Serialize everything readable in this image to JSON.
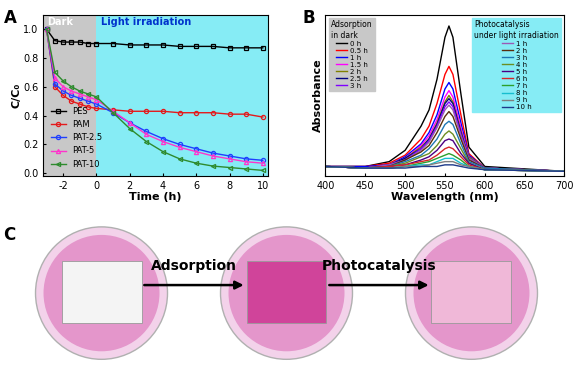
{
  "chart_data": [
    {
      "type": "line",
      "title": "A",
      "x_label": "Time (h)",
      "y_label": "C/C₀",
      "x": [
        -3,
        -2.5,
        -2,
        -1.5,
        -1,
        -0.5,
        0,
        1,
        2,
        3,
        4,
        5,
        6,
        7,
        8,
        9,
        10
      ],
      "xlim": [
        -3.2,
        10.3
      ],
      "xticks": [
        -2,
        0,
        2,
        4,
        6,
        8,
        10
      ],
      "ylim": [
        -0.02,
        1.1
      ],
      "yticks": [
        0.0,
        0.2,
        0.4,
        0.6,
        0.8,
        1.0
      ],
      "legend": "lower left",
      "regions": [
        {
          "text": "Dark",
          "from": -3.2,
          "to": 0,
          "color": "#c8c8c8"
        },
        {
          "text": "Light irradiation",
          "from": 0,
          "to": 10.3,
          "color": "#86ecf5"
        }
      ],
      "series": [
        {
          "name": "PES",
          "color": "#000000",
          "marker": "square",
          "values": [
            1.0,
            0.92,
            0.91,
            0.91,
            0.91,
            0.9,
            0.9,
            0.9,
            0.89,
            0.89,
            0.89,
            0.88,
            0.88,
            0.88,
            0.87,
            0.87,
            0.87
          ]
        },
        {
          "name": "PAM",
          "color": "#e41a1c",
          "marker": "circle",
          "values": [
            1.0,
            0.6,
            0.54,
            0.5,
            0.48,
            0.46,
            0.45,
            0.44,
            0.43,
            0.43,
            0.43,
            0.42,
            0.42,
            0.42,
            0.41,
            0.41,
            0.39
          ]
        },
        {
          "name": "PAT-2.5",
          "color": "#1f3fff",
          "marker": "circle",
          "values": [
            1.0,
            0.62,
            0.57,
            0.54,
            0.52,
            0.5,
            0.48,
            0.42,
            0.35,
            0.29,
            0.24,
            0.2,
            0.17,
            0.14,
            0.12,
            0.1,
            0.09
          ]
        },
        {
          "name": "PAT-5",
          "color": "#ff33cc",
          "marker": "triangle",
          "values": [
            1.0,
            0.66,
            0.6,
            0.57,
            0.55,
            0.53,
            0.51,
            0.43,
            0.35,
            0.27,
            0.22,
            0.18,
            0.15,
            0.12,
            0.1,
            0.08,
            0.07
          ]
        },
        {
          "name": "PAT-10",
          "color": "#2e8b2e",
          "marker": "triangle_left",
          "values": [
            1.0,
            0.7,
            0.64,
            0.6,
            0.57,
            0.55,
            0.53,
            0.42,
            0.31,
            0.22,
            0.15,
            0.1,
            0.07,
            0.05,
            0.04,
            0.03,
            0.02
          ]
        }
      ]
    },
    {
      "type": "line",
      "title": "B",
      "x_label": "Wavelength (nm)",
      "y_label": "Absorbance",
      "x": [
        400,
        450,
        480,
        500,
        520,
        530,
        540,
        550,
        555,
        560,
        570,
        580,
        600,
        700
      ],
      "xlim": [
        400,
        700
      ],
      "xticks": [
        400,
        450,
        500,
        550,
        600,
        650,
        700
      ],
      "ylim": [
        0,
        1.0
      ],
      "yticks": [],
      "tick_labels": "x",
      "groups": [
        {
          "title": "Adsorption\nin dark",
          "color": "#c8c8c8",
          "legend": "upper left",
          "series": [
            {
              "name": "0 h",
              "color": "#000000",
              "values": [
                0.06,
                0.06,
                0.09,
                0.16,
                0.31,
                0.41,
                0.6,
                0.86,
                0.93,
                0.86,
                0.51,
                0.18,
                0.06,
                0.03
              ]
            },
            {
              "name": "0.5 h",
              "color": "#ff0000",
              "values": [
                0.06,
                0.06,
                0.08,
                0.13,
                0.23,
                0.31,
                0.45,
                0.63,
                0.68,
                0.63,
                0.38,
                0.14,
                0.05,
                0.03
              ]
            },
            {
              "name": "1 h",
              "color": "#0000ff",
              "values": [
                0.06,
                0.06,
                0.07,
                0.12,
                0.2,
                0.27,
                0.38,
                0.54,
                0.58,
                0.54,
                0.33,
                0.13,
                0.05,
                0.03
              ]
            },
            {
              "name": "1.5 h",
              "color": "#ff00ff",
              "values": [
                0.06,
                0.05,
                0.07,
                0.11,
                0.19,
                0.25,
                0.35,
                0.49,
                0.53,
                0.49,
                0.3,
                0.12,
                0.05,
                0.03
              ]
            },
            {
              "name": "2 h",
              "color": "#808000",
              "values": [
                0.06,
                0.05,
                0.07,
                0.11,
                0.18,
                0.23,
                0.33,
                0.46,
                0.5,
                0.46,
                0.28,
                0.12,
                0.05,
                0.03
              ]
            },
            {
              "name": "2.5 h",
              "color": "#000080",
              "values": [
                0.06,
                0.05,
                0.07,
                0.11,
                0.17,
                0.23,
                0.32,
                0.45,
                0.48,
                0.45,
                0.27,
                0.11,
                0.05,
                0.03
              ]
            },
            {
              "name": "3 h",
              "color": "#8000ff",
              "values": [
                0.06,
                0.05,
                0.07,
                0.1,
                0.17,
                0.22,
                0.31,
                0.43,
                0.46,
                0.43,
                0.26,
                0.11,
                0.05,
                0.03
              ]
            }
          ]
        },
        {
          "title": "Photocatalysis\nunder light irradiation",
          "color": "#86ecf5",
          "legend": "upper right",
          "series": [
            {
              "name": "1 h",
              "color": "#9b59b6",
              "values": [
                0.06,
                0.05,
                0.07,
                0.1,
                0.16,
                0.21,
                0.3,
                0.41,
                0.44,
                0.41,
                0.25,
                0.11,
                0.05,
                0.03
              ]
            },
            {
              "name": "2 h",
              "color": "#5a2d0c",
              "values": [
                0.06,
                0.05,
                0.06,
                0.1,
                0.15,
                0.19,
                0.27,
                0.37,
                0.4,
                0.37,
                0.23,
                0.1,
                0.05,
                0.03
              ]
            },
            {
              "name": "3 h",
              "color": "#1f77b4",
              "values": [
                0.06,
                0.05,
                0.06,
                0.09,
                0.13,
                0.17,
                0.23,
                0.32,
                0.34,
                0.32,
                0.2,
                0.09,
                0.05,
                0.03
              ]
            },
            {
              "name": "4 h",
              "color": "#6b8e23",
              "values": [
                0.06,
                0.05,
                0.06,
                0.08,
                0.12,
                0.14,
                0.19,
                0.26,
                0.28,
                0.26,
                0.17,
                0.08,
                0.04,
                0.03
              ]
            },
            {
              "name": "5 h",
              "color": "#4b0082",
              "values": [
                0.06,
                0.05,
                0.06,
                0.07,
                0.1,
                0.12,
                0.16,
                0.22,
                0.23,
                0.22,
                0.14,
                0.08,
                0.04,
                0.03
              ]
            },
            {
              "name": "6 h",
              "color": "#d62728",
              "values": [
                0.06,
                0.05,
                0.06,
                0.07,
                0.09,
                0.1,
                0.13,
                0.17,
                0.18,
                0.17,
                0.12,
                0.07,
                0.04,
                0.03
              ]
            },
            {
              "name": "7 h",
              "color": "#2ca02c",
              "values": [
                0.06,
                0.05,
                0.05,
                0.06,
                0.08,
                0.09,
                0.11,
                0.13,
                0.14,
                0.13,
                0.1,
                0.06,
                0.04,
                0.03
              ]
            },
            {
              "name": "8 h",
              "color": "#17becf",
              "values": [
                0.06,
                0.05,
                0.05,
                0.06,
                0.07,
                0.07,
                0.09,
                0.11,
                0.11,
                0.11,
                0.08,
                0.06,
                0.04,
                0.03
              ]
            },
            {
              "name": "9 h",
              "color": "#7f7f7f",
              "values": [
                0.06,
                0.05,
                0.05,
                0.06,
                0.06,
                0.07,
                0.08,
                0.09,
                0.09,
                0.09,
                0.07,
                0.06,
                0.04,
                0.03
              ]
            },
            {
              "name": "10 h",
              "color": "#1e3a8a",
              "values": [
                0.06,
                0.05,
                0.05,
                0.05,
                0.06,
                0.06,
                0.06,
                0.07,
                0.07,
                0.07,
                0.06,
                0.05,
                0.04,
                0.03
              ]
            }
          ]
        }
      ]
    }
  ],
  "diagram": {
    "title": "C",
    "steps": [
      "Adsorption",
      "Photocatalysis"
    ]
  }
}
